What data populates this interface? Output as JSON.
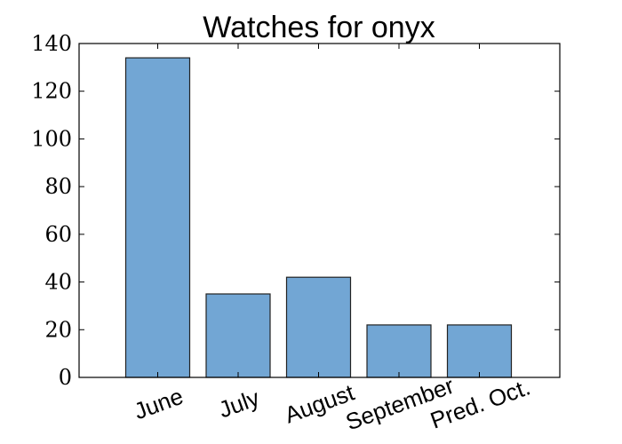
{
  "chart_data": {
    "type": "bar",
    "title": "Watches for onyx",
    "categories": [
      "June",
      "July",
      "August",
      "September",
      "Pred. Oct."
    ],
    "values": [
      134,
      35,
      42,
      22,
      22
    ],
    "xlabel": "",
    "ylabel": "",
    "ylim": [
      0,
      140
    ],
    "yticks": [
      "0",
      "20",
      "40",
      "60",
      "80",
      "100",
      "120",
      "140"
    ],
    "bar_color": "#72a6d4",
    "grid": false,
    "x_tick_rotation_deg": -20
  }
}
